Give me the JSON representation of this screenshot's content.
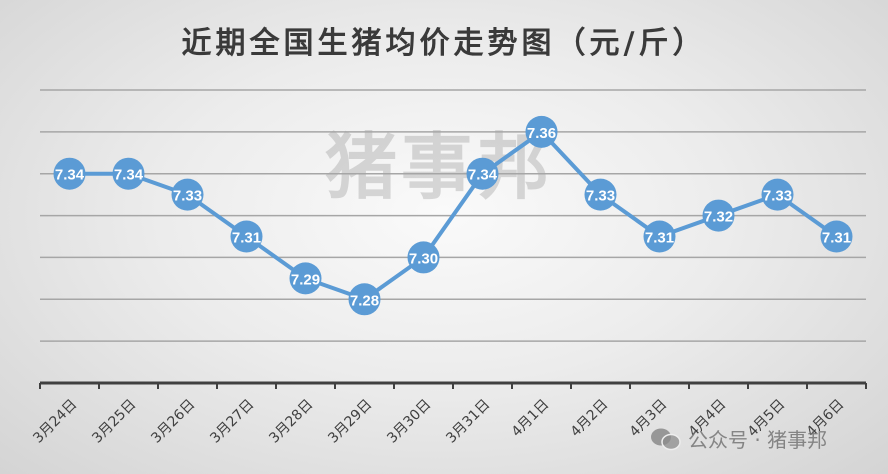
{
  "chart_data": {
    "type": "line",
    "title": "近期全国生猪均价走势图（元/斤）",
    "categories": [
      "3月24日",
      "3月25日",
      "3月26日",
      "3月27日",
      "3月28日",
      "3月29日",
      "3月30日",
      "3月31日",
      "4月1日",
      "4月2日",
      "4月3日",
      "4月4日",
      "4月5日",
      "4月6日"
    ],
    "values": [
      7.34,
      7.34,
      7.33,
      7.31,
      7.29,
      7.28,
      7.3,
      7.34,
      7.36,
      7.33,
      7.31,
      7.32,
      7.33,
      7.31
    ],
    "data_labels": [
      "7.34",
      "7.34",
      "7.33",
      "7.31",
      "7.29",
      "7.28",
      "7.30",
      "7.34",
      "7.36",
      "7.33",
      "7.31",
      "7.32",
      "7.33",
      "7.31"
    ],
    "ylim": [
      7.24,
      7.38
    ],
    "y_axis_labels_shown": false,
    "grid": true,
    "legend": "none",
    "colors": {
      "series": "#5b9bd5",
      "grid": "#a6a6a6",
      "axis": "#404040",
      "label": "#ffffff"
    }
  },
  "watermark": "猪事邦",
  "footer_mark": {
    "icon": "wechat-icon",
    "text": "公众号 · 猪事邦"
  }
}
